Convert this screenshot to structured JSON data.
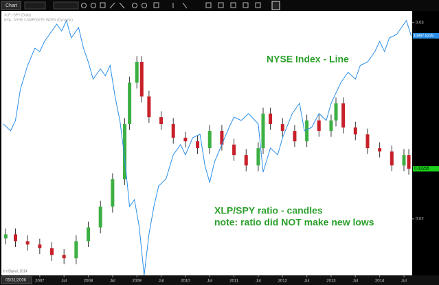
{
  "toolbar": {
    "tab": "Chart"
  },
  "start_date": "05/31/2006",
  "footer": "© eSignal, 2014",
  "chart_data": {
    "type": "candlestick",
    "annotations": [
      "NYSE Index - Line",
      "XLP/SPY ratio - candles",
      "note: ratio did NOT make new lows"
    ],
    "annotation_color": "#2ca02c",
    "xlim": [
      2006.21,
      2014.67
    ],
    "xticks": [
      2007,
      {
        "value": 2007.5,
        "label": "Jul"
      },
      2008,
      {
        "value": 2008.5,
        "label": "Jul"
      },
      2009,
      {
        "value": 2009.5,
        "label": "Jul"
      },
      2010,
      {
        "value": 2010.5,
        "label": "Jul"
      },
      2011,
      {
        "value": 2011.5,
        "label": "Jul"
      },
      2012,
      {
        "value": 2012.5,
        "label": "Jul"
      },
      2013,
      {
        "value": 2013.5,
        "label": "Jul"
      },
      2014,
      {
        "value": 2014.5,
        "label": "Jul"
      }
    ],
    "ylim": [
      0.01712,
      0.0302
    ],
    "yticks": [
      0.03,
      0.02
    ],
    "y2lim": [
      4226,
      11484
    ],
    "series": [
      {
        "name": "XLP / SPY (Daily)",
        "type": "candlestick",
        "up_color": "#3cb043",
        "down_color": "#c8202a",
        "x": [
          2006.3,
          2006.5,
          2006.75,
          2007,
          2007.25,
          2007.5,
          2007.75,
          2008,
          2008.25,
          2008.5,
          2008.75,
          2008.85,
          2009.0,
          2009.1,
          2009.25,
          2009.5,
          2009.75,
          2010,
          2010.25,
          2010.5,
          2010.75,
          2011,
          2011.25,
          2011.5,
          2011.6,
          2011.75,
          2012,
          2012.25,
          2012.5,
          2012.75,
          2013,
          2013.1,
          2013.25,
          2013.5,
          2013.75,
          2014,
          2014.25,
          2014.5,
          2014.6
        ],
        "open": [
          0.019,
          0.01921,
          0.01886,
          0.01869,
          0.01851,
          0.01816,
          0.01799,
          0.01886,
          0.01956,
          0.02062,
          0.02202,
          0.02483,
          0.02694,
          0.02799,
          0.02623,
          0.02518,
          0.02483,
          0.02413,
          0.02395,
          0.0236,
          0.02448,
          0.02378,
          0.02325,
          0.02272,
          0.0236,
          0.02536,
          0.02483,
          0.02448,
          0.02395,
          0.02501,
          0.02448,
          0.02501,
          0.02588,
          0.02465,
          0.0243,
          0.0236,
          0.02343,
          0.02272,
          0.02325
        ],
        "high": [
          0.01951,
          0.01951,
          0.01916,
          0.01899,
          0.01881,
          0.01846,
          0.01916,
          0.01986,
          0.02092,
          0.02232,
          0.02513,
          0.02724,
          0.02829,
          0.02829,
          0.02653,
          0.02548,
          0.02513,
          0.02443,
          0.02425,
          0.02478,
          0.02478,
          0.02408,
          0.02355,
          0.0239,
          0.02566,
          0.02566,
          0.02513,
          0.02478,
          0.02531,
          0.02531,
          0.02531,
          0.02618,
          0.02618,
          0.02495,
          0.0246,
          0.0239,
          0.02373,
          0.02355,
          0.02355
        ],
        "low": [
          0.0187,
          0.01856,
          0.01839,
          0.01821,
          0.01786,
          0.01769,
          0.01769,
          0.01856,
          0.01926,
          0.02032,
          0.02172,
          0.02453,
          0.02664,
          0.02593,
          0.02488,
          0.02453,
          0.02383,
          0.02365,
          0.0233,
          0.0233,
          0.02348,
          0.02295,
          0.02242,
          0.02242,
          0.0233,
          0.02453,
          0.02418,
          0.02365,
          0.02365,
          0.02418,
          0.02418,
          0.02471,
          0.02435,
          0.024,
          0.0233,
          0.02313,
          0.02242,
          0.02242,
          0.02225
        ],
        "close": [
          0.01921,
          0.01886,
          0.01869,
          0.01851,
          0.01816,
          0.01799,
          0.01886,
          0.01956,
          0.02062,
          0.02202,
          0.02483,
          0.02694,
          0.02799,
          0.02623,
          0.02518,
          0.02483,
          0.02413,
          0.02395,
          0.0236,
          0.02448,
          0.02378,
          0.02325,
          0.02272,
          0.0236,
          0.02536,
          0.02483,
          0.02448,
          0.02395,
          0.02501,
          0.02448,
          0.02501,
          0.02588,
          0.02465,
          0.0243,
          0.0236,
          0.02343,
          0.02272,
          0.02325,
          0.02255
        ]
      },
      {
        "name": "NYA - NYSE COMPOSITE INDEX (Dynamic)",
        "type": "line",
        "axis": "y2",
        "color": "#2a8ee8",
        "x": [
          2006.25,
          2006.4,
          2006.5,
          2006.6,
          2006.75,
          2006.9,
          2007.0,
          2007.1,
          2007.2,
          2007.35,
          2007.45,
          2007.55,
          2007.65,
          2007.8,
          2007.9,
          2008.0,
          2008.1,
          2008.25,
          2008.35,
          2008.45,
          2008.55,
          2008.65,
          2008.75,
          2008.85,
          2008.95,
          2009.05,
          2009.15,
          2009.25,
          2009.35,
          2009.45,
          2009.6,
          2009.75,
          2009.9,
          2010.0,
          2010.15,
          2010.3,
          2010.4,
          2010.5,
          2010.6,
          2010.75,
          2010.9,
          2011.0,
          2011.15,
          2011.3,
          2011.5,
          2011.6,
          2011.75,
          2011.9,
          2012.0,
          2012.2,
          2012.35,
          2012.45,
          2012.6,
          2012.75,
          2012.9,
          2013.0,
          2013.2,
          2013.35,
          2013.5,
          2013.6,
          2013.75,
          2013.9,
          2014.0,
          2014.1,
          2014.2,
          2014.35,
          2014.45,
          2014.55,
          2014.65
        ],
        "values": [
          8507,
          8313,
          8604,
          9480,
          10161,
          10647,
          10550,
          10842,
          11036,
          11328,
          11134,
          11426,
          10939,
          11231,
          10647,
          10258,
          9772,
          10063,
          9869,
          10161,
          9285,
          8604,
          7534,
          6172,
          6366,
          5588,
          4226,
          5393,
          6172,
          6755,
          6950,
          7631,
          7923,
          7631,
          8117,
          8215,
          7339,
          6853,
          7436,
          7923,
          8409,
          8701,
          8604,
          8798,
          8507,
          7145,
          7826,
          7631,
          8117,
          8798,
          9090,
          8312,
          8409,
          8798,
          8604,
          9090,
          9674,
          9966,
          9772,
          10161,
          10258,
          10550,
          10842,
          10550,
          10939,
          11036,
          11231,
          11426,
          10997.5225
        ]
      }
    ]
  }
}
